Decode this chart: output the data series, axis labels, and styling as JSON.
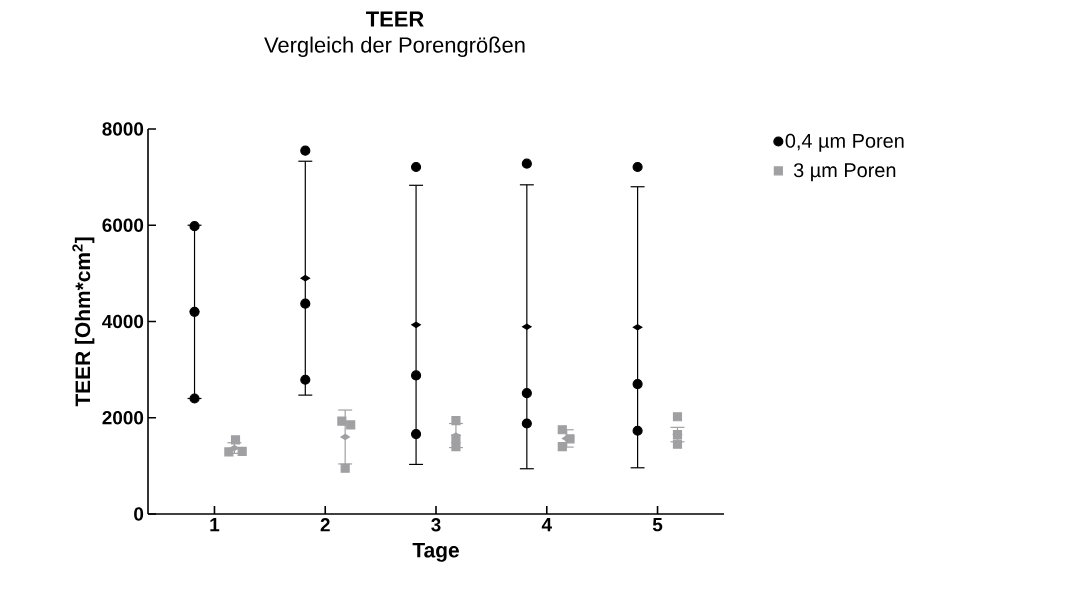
{
  "chart_data": {
    "type": "scatter",
    "title": "**TEER**",
    "subtitle": "Vergleich der Porengrößen",
    "xlabel": "Tage",
    "ylabel": "TEER [Ohm*cm$^{2}$]",
    "series": [
      {
        "name": "0,4 µm Poren",
        "color": "#000000",
        "marker": "circle",
        "x": [
          0.82,
          0.82,
          0.82,
          1.82,
          1.82,
          1.82,
          2.82,
          2.82,
          2.82,
          3.82,
          3.82,
          3.82,
          4.82,
          4.82,
          4.82
        ],
        "values": [
          5980,
          4200,
          2400,
          7550,
          4370,
          2790,
          7210,
          2880,
          1660,
          7280,
          2510,
          1880,
          7210,
          2700,
          1730
        ]
      },
      {
        "name": "3 µm Poren",
        "color": "#a0a0a3",
        "marker": "square",
        "x": [
          1.13,
          1.19,
          1.25,
          2.15,
          2.23,
          2.18,
          3.18,
          3.18,
          3.18,
          4.14,
          4.21,
          4.14,
          5.18,
          5.18,
          5.18
        ],
        "values": [
          1290,
          1540,
          1300,
          1930,
          1850,
          950,
          1940,
          1560,
          1400,
          1750,
          1560,
          1400,
          2020,
          1650,
          1450
        ]
      },
      {
        "color": "#000000",
        "marker": "diamond",
        "x": [
          0.82,
          1.82,
          2.82,
          3.82,
          4.82
        ],
        "values": [
          4200,
          4900,
          3930,
          3890,
          3880
        ],
        "errors": [
          1800,
          2430,
          2900,
          2950,
          2920
        ]
      },
      {
        "color": "#a0a0a3",
        "marker": "diamond",
        "x": [
          1.18,
          2.18,
          3.18,
          4.18,
          5.18
        ],
        "values": [
          1370,
          1600,
          1630,
          1570,
          1650
        ],
        "errors": [
          110,
          560,
          250,
          180,
          150
        ]
      }
    ],
    "xlim": [
      0.4,
      5.6
    ],
    "xticks": [
      1,
      2,
      3,
      4,
      5
    ],
    "ylim": [
      0,
      8000
    ],
    "yticks": [
      0,
      2000,
      4000,
      6000,
      8000
    ],
    "grid": false,
    "legend": "top right"
  }
}
